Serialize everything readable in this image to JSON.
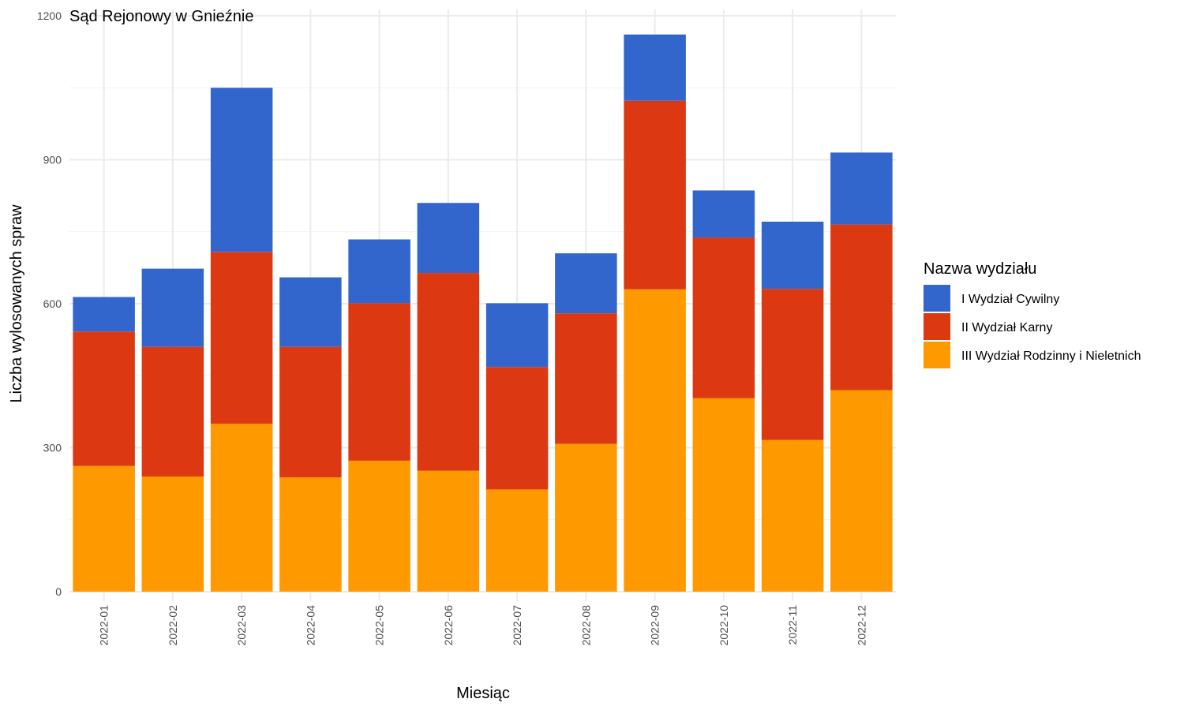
{
  "chart_data": {
    "type": "bar",
    "stacked": true,
    "title": "Sąd Rejonowy w Gnieźnie",
    "xlabel": "Miesiąc",
    "ylabel": "Liczba wylosowanych spraw",
    "ylim": [
      0,
      1200
    ],
    "yticks": [
      "0",
      "300",
      "600",
      "900",
      "1200"
    ],
    "grid": true,
    "legend_position": "right",
    "legend_title": "Nazwa wydziału",
    "categories": [
      "2022-01",
      "2022-02",
      "2022-03",
      "2022-04",
      "2022-05",
      "2022-06",
      "2022-07",
      "2022-08",
      "2022-09",
      "2022-10",
      "2022-11",
      "2022-12"
    ],
    "series": [
      {
        "name": "III Wydział Rodzinny i Nieletnich",
        "color": "#FF9900",
        "values": [
          262,
          240,
          350,
          238,
          273,
          252,
          213,
          308,
          630,
          403,
          316,
          420
        ]
      },
      {
        "name": "II Wydział Karny",
        "color": "#DC3912",
        "values": [
          280,
          270,
          358,
          272,
          328,
          412,
          255,
          272,
          393,
          335,
          315,
          345
        ]
      },
      {
        "name": "I Wydział Cywilny",
        "color": "#3366CC",
        "values": [
          72,
          163,
          342,
          145,
          133,
          146,
          133,
          125,
          138,
          98,
          140,
          150
        ]
      }
    ],
    "legend_order": [
      "I Wydział Cywilny",
      "II Wydział Karny",
      "III Wydział Rodzinny i Nieletnich"
    ]
  }
}
